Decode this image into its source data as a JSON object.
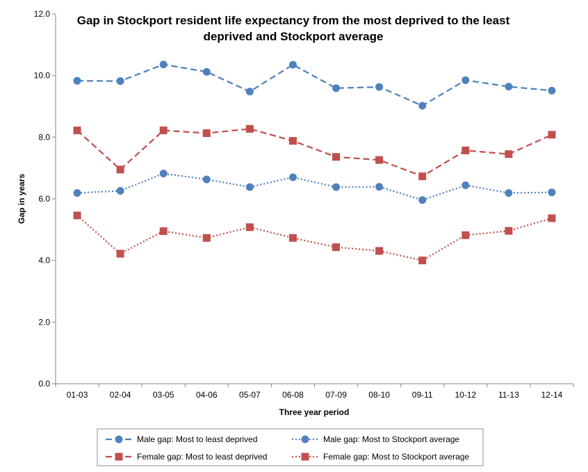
{
  "chart_data": {
    "type": "line",
    "title_lines": [
      "Gap in Stockport resident life expectancy from the most deprived to the least",
      "deprived and Stockport average"
    ],
    "xlabel": "Three year period",
    "ylabel": "Gap in years",
    "ylim": [
      0,
      12
    ],
    "y_ticks": [
      "0.0",
      "2.0",
      "4.0",
      "6.0",
      "8.0",
      "10.0",
      "12.0"
    ],
    "categories": [
      "01-03",
      "02-04",
      "03-05",
      "04-06",
      "05-07",
      "06-08",
      "07-09",
      "08-10",
      "09-11",
      "10-12",
      "11-13",
      "12-14"
    ],
    "grid": false,
    "legend_position": "bottom",
    "series": [
      {
        "name": "Male gap: Most to least deprived",
        "color": "#4F81BD",
        "line_style": "dashed",
        "marker": "circle",
        "values": [
          9.83,
          9.82,
          10.36,
          10.12,
          9.48,
          10.35,
          9.59,
          9.63,
          9.02,
          9.85,
          9.64,
          9.51
        ]
      },
      {
        "name": "Female gap: Most to least deprived",
        "color": "#C0504D",
        "line_style": "dashed",
        "marker": "square",
        "values": [
          8.22,
          6.95,
          8.22,
          8.13,
          8.27,
          7.88,
          7.36,
          7.26,
          6.73,
          7.57,
          7.45,
          8.08
        ]
      },
      {
        "name": "Male gap: Most to Stockport average",
        "color": "#4F81BD",
        "line_style": "dotted",
        "marker": "circle",
        "values": [
          6.19,
          6.26,
          6.82,
          6.63,
          6.38,
          6.7,
          6.38,
          6.39,
          5.96,
          6.44,
          6.19,
          6.21
        ]
      },
      {
        "name": "Female gap: Most to Stockport average",
        "color": "#C0504D",
        "line_style": "dotted",
        "marker": "square",
        "values": [
          5.46,
          4.22,
          4.95,
          4.73,
          5.08,
          4.73,
          4.43,
          4.31,
          4.0,
          4.82,
          4.96,
          5.37
        ]
      }
    ]
  }
}
